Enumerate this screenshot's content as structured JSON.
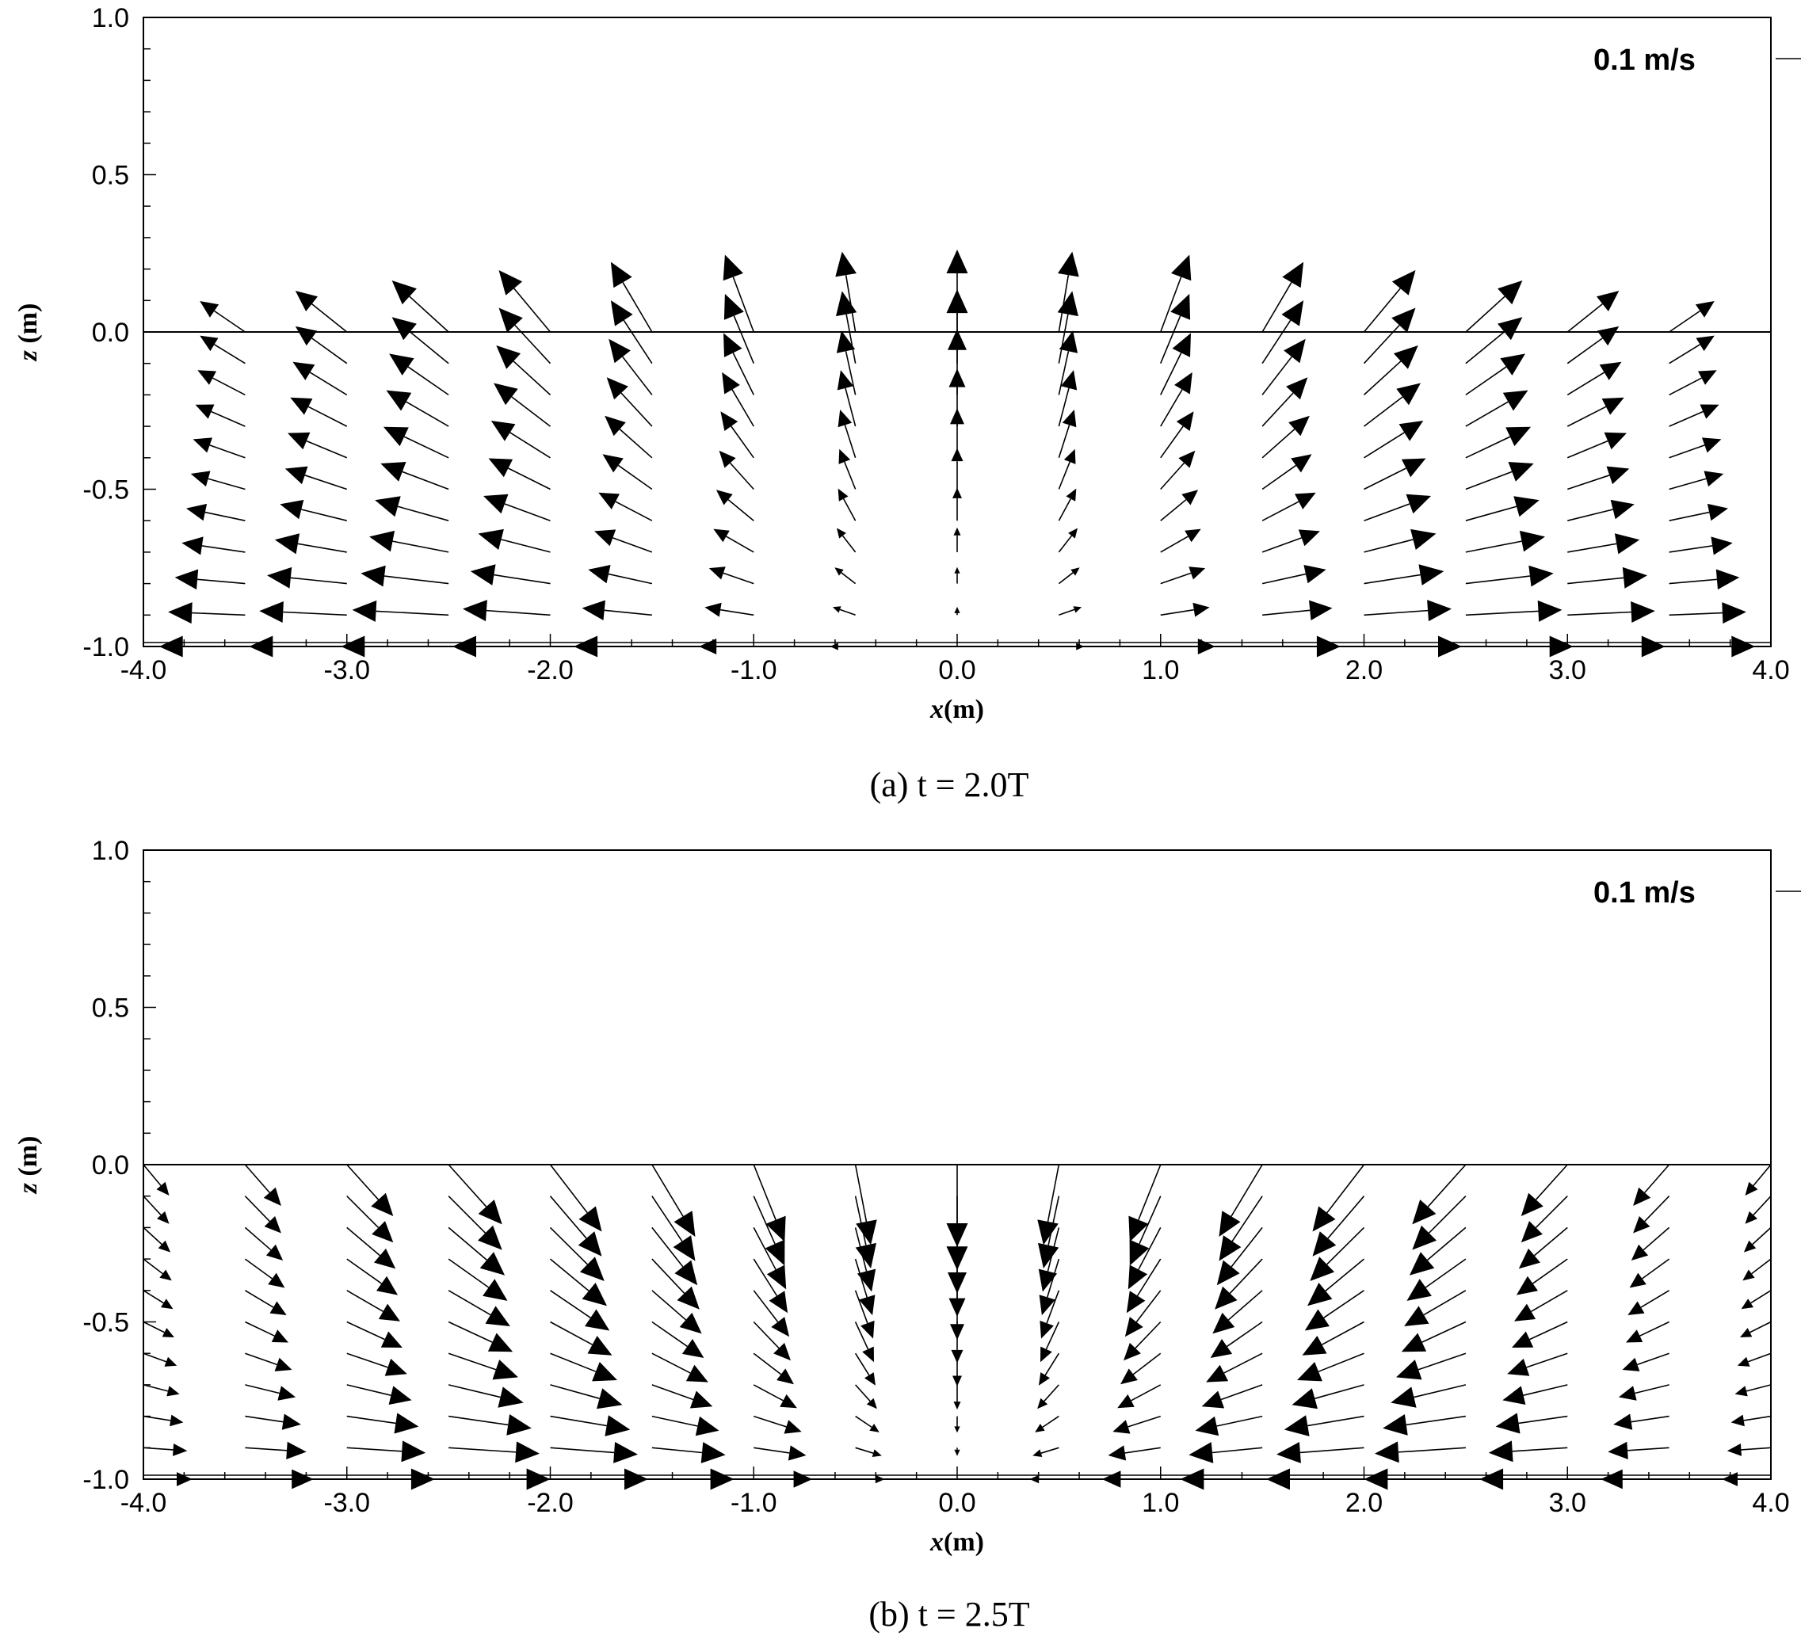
{
  "chart_data": [
    {
      "type": "vector",
      "caption": "(a)  t = 2.0T",
      "xlabel": "x(m)",
      "ylabel": "z (m)",
      "xlim": [
        -4.0,
        4.0
      ],
      "ylim": [
        -1.0,
        1.0
      ],
      "xticks": [
        "-4.0",
        "-3.0",
        "-2.0",
        "-1.0",
        "0.0",
        "1.0",
        "2.0",
        "3.0",
        "4.0"
      ],
      "yticks": [
        "1.0",
        "0.5",
        "0.0",
        "-0.5",
        "-1.0"
      ],
      "reference_vector": {
        "label": "0.1 m/s",
        "magnitude": 0.1
      },
      "free_surface_z": 0.0,
      "field": {
        "column_x": [
          -3.5,
          -3.0,
          -2.5,
          -2.0,
          -1.5,
          -1.0,
          -0.5,
          0.0,
          0.5,
          1.0,
          1.5,
          2.0,
          2.5,
          3.0,
          3.5
        ],
        "rows_z": [
          0.0,
          -0.1,
          -0.2,
          -0.3,
          -0.4,
          -0.5,
          -0.6,
          -0.7,
          -0.8,
          -0.9,
          -1.0
        ],
        "column_u": [
          -0.044,
          -0.05,
          -0.055,
          -0.05,
          -0.04,
          -0.028,
          -0.013,
          0.0,
          0.013,
          0.028,
          0.04,
          0.05,
          0.055,
          0.05,
          0.044
        ],
        "column_w": [
          0.03,
          0.04,
          0.05,
          0.06,
          0.068,
          0.075,
          0.078,
          0.08,
          0.078,
          0.075,
          0.068,
          0.06,
          0.05,
          0.04,
          0.03
        ],
        "u_depth_factor": [
          1.0,
          1.0,
          1.05,
          1.1,
          1.15,
          1.2,
          1.3,
          1.4,
          1.55,
          1.7,
          1.9
        ],
        "w_depth_factor": [
          1.0,
          0.9,
          0.8,
          0.7,
          0.6,
          0.5,
          0.4,
          0.3,
          0.2,
          0.1,
          0.0
        ]
      }
    },
    {
      "type": "vector",
      "caption": "(b)  t = 2.5T",
      "xlabel": "x(m)",
      "ylabel": "z (m)",
      "xlim": [
        -4.0,
        4.0
      ],
      "ylim": [
        -1.0,
        1.0
      ],
      "xticks": [
        "-4.0",
        "-3.0",
        "-2.0",
        "-1.0",
        "0.0",
        "1.0",
        "2.0",
        "3.0",
        "4.0"
      ],
      "yticks": [
        "1.0",
        "0.5",
        "0.0",
        "-0.5",
        "-1.0"
      ],
      "reference_vector": {
        "label": "0.1 m/s",
        "magnitude": 0.1
      },
      "free_surface_z": 0.0,
      "field": {
        "column_x": [
          -4.0,
          -3.5,
          -3.0,
          -2.5,
          -2.0,
          -1.5,
          -1.0,
          -0.5,
          0.0,
          0.5,
          1.0,
          1.5,
          2.0,
          2.5,
          3.0,
          3.5,
          4.0
        ],
        "rows_z": [
          0.0,
          -0.1,
          -0.2,
          -0.3,
          -0.4,
          -0.5,
          -0.6,
          -0.7,
          -0.8,
          -0.9,
          -1.0
        ],
        "column_u": [
          0.025,
          0.035,
          0.045,
          0.052,
          0.05,
          0.042,
          0.03,
          0.015,
          0.0,
          -0.015,
          -0.03,
          -0.042,
          -0.05,
          -0.052,
          -0.045,
          -0.035,
          -0.025
        ],
        "column_w": [
          -0.03,
          -0.04,
          -0.05,
          -0.058,
          -0.065,
          -0.07,
          -0.075,
          -0.078,
          -0.08,
          -0.078,
          -0.075,
          -0.07,
          -0.065,
          -0.058,
          -0.05,
          -0.04,
          -0.03
        ],
        "u_depth_factor": [
          1.0,
          1.0,
          1.05,
          1.1,
          1.15,
          1.2,
          1.3,
          1.4,
          1.55,
          1.7,
          1.9
        ],
        "w_depth_factor": [
          1.0,
          0.9,
          0.8,
          0.7,
          0.6,
          0.5,
          0.4,
          0.3,
          0.2,
          0.1,
          0.0
        ]
      }
    }
  ]
}
